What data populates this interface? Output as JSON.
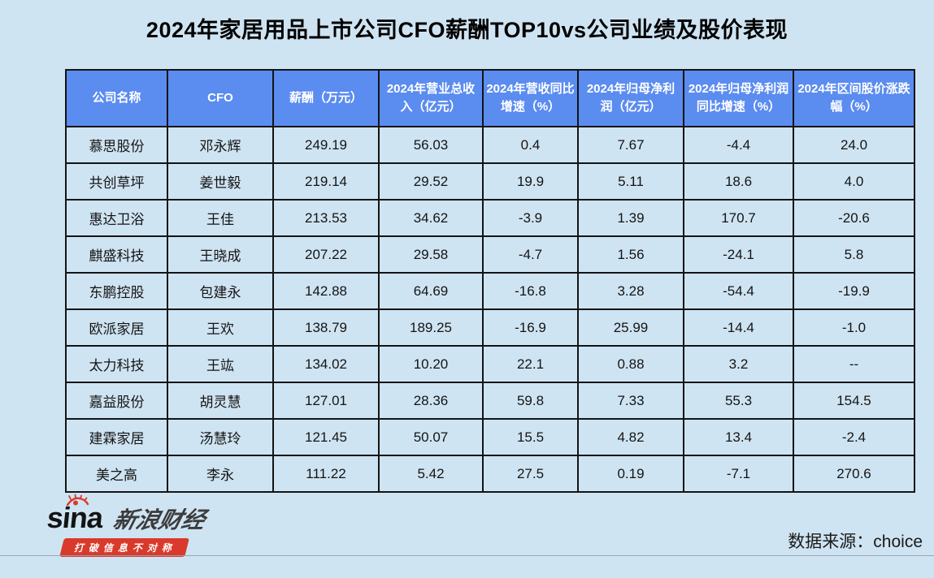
{
  "title": "2024年家居用品上市公司CFO薪酬TOP10vs公司业绩及股价表现",
  "table": {
    "headers": [
      "公司名称",
      "CFO",
      "薪酬（万元）",
      "2024年营业总收入（亿元）",
      "2024年营收同比增速（%）",
      "2024年归母净利润（亿元）",
      "2024年归母净利润同比增速（%）",
      "2024年区间股价涨跌幅（%）"
    ],
    "rows": [
      [
        "慕思股份",
        "邓永辉",
        "249.19",
        "56.03",
        "0.4",
        "7.67",
        "-4.4",
        "24.0"
      ],
      [
        "共创草坪",
        "姜世毅",
        "219.14",
        "29.52",
        "19.9",
        "5.11",
        "18.6",
        "4.0"
      ],
      [
        "惠达卫浴",
        "王佳",
        "213.53",
        "34.62",
        "-3.9",
        "1.39",
        "170.7",
        "-20.6"
      ],
      [
        "麒盛科技",
        "王晓成",
        "207.22",
        "29.58",
        "-4.7",
        "1.56",
        "-24.1",
        "5.8"
      ],
      [
        "东鹏控股",
        "包建永",
        "142.88",
        "64.69",
        "-16.8",
        "3.28",
        "-54.4",
        "-19.9"
      ],
      [
        "欧派家居",
        "王欢",
        "138.79",
        "189.25",
        "-16.9",
        "25.99",
        "-14.4",
        "-1.0"
      ],
      [
        "太力科技",
        "王竑",
        "134.02",
        "10.20",
        "22.1",
        "0.88",
        "3.2",
        "--"
      ],
      [
        "嘉益股份",
        "胡灵慧",
        "127.01",
        "28.36",
        "59.8",
        "7.33",
        "55.3",
        "154.5"
      ],
      [
        "建霖家居",
        "汤慧玲",
        "121.45",
        "50.07",
        "15.5",
        "4.82",
        "13.4",
        "-2.4"
      ],
      [
        "美之高",
        "李永",
        "111.22",
        "5.42",
        "27.5",
        "0.19",
        "-7.1",
        "270.6"
      ]
    ]
  },
  "footer": {
    "logo_sina": "sina",
    "logo_brand": "新浪财经",
    "logo_slogan": "打破信息不对称",
    "source": "数据来源：choice"
  },
  "colors": {
    "page_bg": "#cfe4f2",
    "header_bg": "#5b8cf0",
    "border": "#141414",
    "badge_red": "#d93a2b"
  },
  "chart_data": {
    "type": "table",
    "title": "2024年家居用品上市公司CFO薪酬TOP10vs公司业绩及股价表现",
    "columns": [
      "公司名称",
      "CFO",
      "薪酬（万元）",
      "2024年营业总收入（亿元）",
      "2024年营收同比增速（%）",
      "2024年归母净利润（亿元）",
      "2024年归母净利润同比增速（%）",
      "2024年区间股价涨跌幅（%）"
    ],
    "rows": [
      {
        "company": "慕思股份",
        "cfo": "邓永辉",
        "salary_wan": 249.19,
        "revenue_yi": 56.03,
        "revenue_yoy_pct": 0.4,
        "net_profit_yi": 7.67,
        "net_profit_yoy_pct": -4.4,
        "stock_change_pct": 24.0
      },
      {
        "company": "共创草坪",
        "cfo": "姜世毅",
        "salary_wan": 219.14,
        "revenue_yi": 29.52,
        "revenue_yoy_pct": 19.9,
        "net_profit_yi": 5.11,
        "net_profit_yoy_pct": 18.6,
        "stock_change_pct": 4.0
      },
      {
        "company": "惠达卫浴",
        "cfo": "王佳",
        "salary_wan": 213.53,
        "revenue_yi": 34.62,
        "revenue_yoy_pct": -3.9,
        "net_profit_yi": 1.39,
        "net_profit_yoy_pct": 170.7,
        "stock_change_pct": -20.6
      },
      {
        "company": "麒盛科技",
        "cfo": "王晓成",
        "salary_wan": 207.22,
        "revenue_yi": 29.58,
        "revenue_yoy_pct": -4.7,
        "net_profit_yi": 1.56,
        "net_profit_yoy_pct": -24.1,
        "stock_change_pct": 5.8
      },
      {
        "company": "东鹏控股",
        "cfo": "包建永",
        "salary_wan": 142.88,
        "revenue_yi": 64.69,
        "revenue_yoy_pct": -16.8,
        "net_profit_yi": 3.28,
        "net_profit_yoy_pct": -54.4,
        "stock_change_pct": -19.9
      },
      {
        "company": "欧派家居",
        "cfo": "王欢",
        "salary_wan": 138.79,
        "revenue_yi": 189.25,
        "revenue_yoy_pct": -16.9,
        "net_profit_yi": 25.99,
        "net_profit_yoy_pct": -14.4,
        "stock_change_pct": -1.0
      },
      {
        "company": "太力科技",
        "cfo": "王竑",
        "salary_wan": 134.02,
        "revenue_yi": 10.2,
        "revenue_yoy_pct": 22.1,
        "net_profit_yi": 0.88,
        "net_profit_yoy_pct": 3.2,
        "stock_change_pct": null
      },
      {
        "company": "嘉益股份",
        "cfo": "胡灵慧",
        "salary_wan": 127.01,
        "revenue_yi": 28.36,
        "revenue_yoy_pct": 59.8,
        "net_profit_yi": 7.33,
        "net_profit_yoy_pct": 55.3,
        "stock_change_pct": 154.5
      },
      {
        "company": "建霖家居",
        "cfo": "汤慧玲",
        "salary_wan": 121.45,
        "revenue_yi": 50.07,
        "revenue_yoy_pct": 15.5,
        "net_profit_yi": 4.82,
        "net_profit_yoy_pct": 13.4,
        "stock_change_pct": -2.4
      },
      {
        "company": "美之高",
        "cfo": "李永",
        "salary_wan": 111.22,
        "revenue_yi": 5.42,
        "revenue_yoy_pct": 27.5,
        "net_profit_yi": 0.19,
        "net_profit_yoy_pct": -7.1,
        "stock_change_pct": 270.6
      }
    ],
    "source": "choice"
  }
}
